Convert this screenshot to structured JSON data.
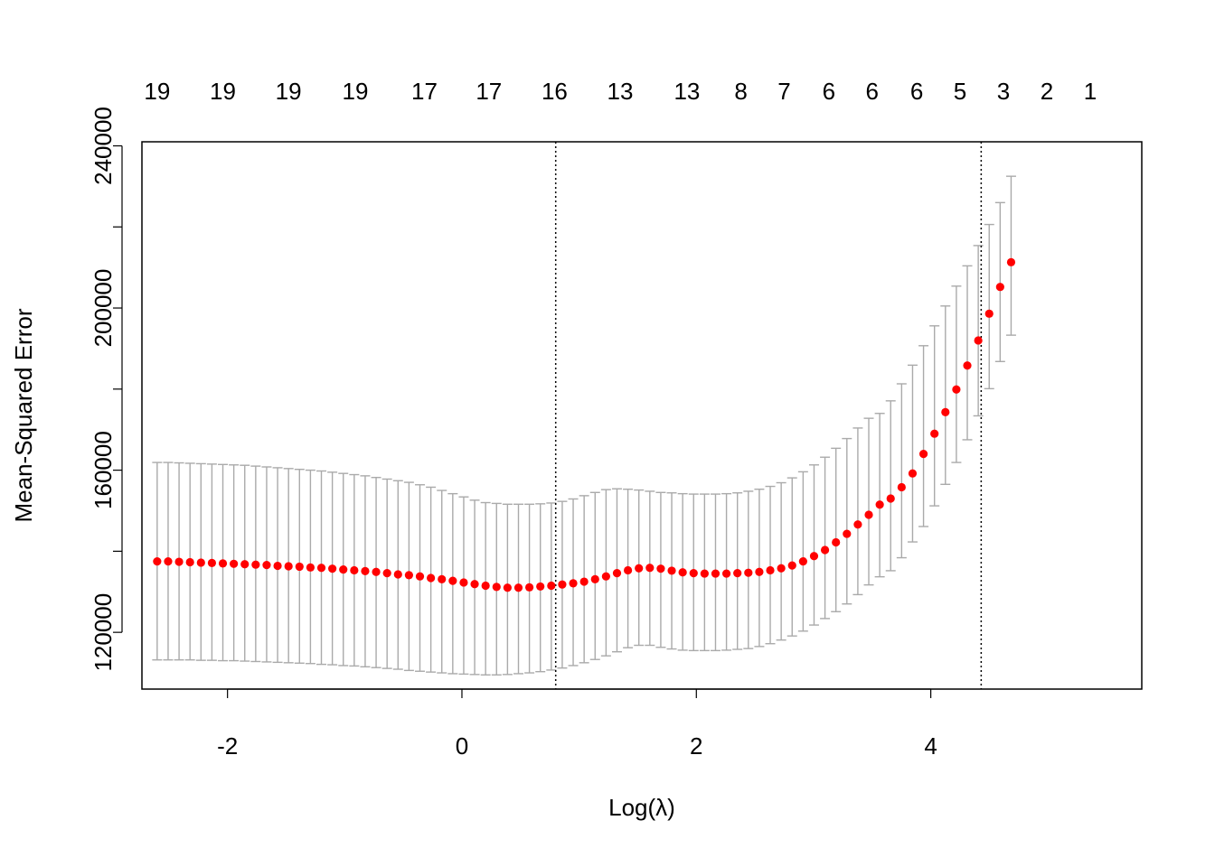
{
  "chart_data": {
    "type": "scatter",
    "title": "",
    "xlabel": "Log(λ)",
    "ylabel": "Mean-Squared Error",
    "xlim": [
      -2.73,
      5.8
    ],
    "ylim": [
      106000,
      241000
    ],
    "x_ticks": [
      -2,
      0,
      2,
      4
    ],
    "x_tick_labels": [
      "-2",
      "0",
      "2",
      "4"
    ],
    "y_ticks": [
      120000,
      140000,
      160000,
      180000,
      200000,
      220000,
      240000
    ],
    "y_tick_labels": [
      "120000",
      "",
      "160000",
      "",
      "200000",
      "",
      "240000"
    ],
    "top_axis": {
      "positions": [
        -2.6,
        -2.04,
        -1.48,
        -0.91,
        -0.32,
        0.23,
        0.79,
        1.35,
        1.92,
        2.38,
        2.75,
        3.13,
        3.5,
        3.88,
        4.25,
        4.62,
        4.99,
        5.36
      ],
      "labels": [
        "19",
        "19",
        "19",
        "19",
        "17",
        "17",
        "16",
        "13",
        "13",
        "8",
        "7",
        "6",
        "6",
        "6",
        "5",
        "3",
        "2",
        "1"
      ]
    },
    "vlines": [
      0.8,
      4.43
    ],
    "grid": false,
    "legend": "none",
    "point_color": "#ff0000",
    "errorbar_color": "#aaaaaa",
    "series": [
      {
        "x_start": -2.6,
        "x_step": 0.0934,
        "mean": [
          137500,
          137500,
          137400,
          137300,
          137200,
          137100,
          137000,
          136900,
          136800,
          136700,
          136600,
          136400,
          136300,
          136200,
          136000,
          135900,
          135700,
          135500,
          135300,
          135100,
          134900,
          134600,
          134300,
          134100,
          133800,
          133400,
          133100,
          132700,
          132300,
          131900,
          131500,
          131200,
          131000,
          131000,
          131100,
          131300,
          131500,
          131800,
          132100,
          132500,
          133100,
          133800,
          134600,
          135300,
          135800,
          135900,
          135700,
          135200,
          134800,
          134600,
          134500,
          134500,
          134500,
          134600,
          134700,
          134900,
          135300,
          135800,
          136500,
          137500,
          138800,
          140300,
          142200,
          144300,
          146600,
          149000,
          151500,
          153000,
          155800,
          159200,
          164000,
          169000,
          174300,
          179900,
          185800,
          192000,
          198600,
          205200,
          211300
        ],
        "lower": [
          113200,
          113200,
          113200,
          113200,
          113100,
          113100,
          113000,
          113000,
          112900,
          112800,
          112700,
          112600,
          112500,
          112400,
          112300,
          112100,
          112000,
          111800,
          111700,
          111500,
          111300,
          111100,
          110900,
          110600,
          110400,
          110200,
          110000,
          109800,
          109700,
          109600,
          109500,
          109500,
          109600,
          109800,
          110000,
          110300,
          110700,
          111200,
          111800,
          112500,
          113300,
          114200,
          115200,
          116200,
          116800,
          116800,
          116300,
          115900,
          115600,
          115500,
          115500,
          115500,
          115600,
          115800,
          116000,
          116500,
          117200,
          118100,
          119100,
          120300,
          121800,
          123400,
          125100,
          127000,
          129300,
          131700,
          133700,
          135200,
          138400,
          142300,
          146100,
          151200,
          156500,
          161900,
          167500,
          173400,
          180100,
          186800,
          193300
        ],
        "upper": [
          161900,
          161900,
          161800,
          161700,
          161600,
          161500,
          161400,
          161300,
          161200,
          161000,
          160800,
          160600,
          160400,
          160200,
          160000,
          159800,
          159500,
          159200,
          158900,
          158600,
          158200,
          157800,
          157400,
          157000,
          156400,
          155800,
          155000,
          154200,
          153400,
          152600,
          152000,
          151800,
          151600,
          151600,
          151600,
          151700,
          151900,
          152300,
          152900,
          153700,
          154500,
          155200,
          155400,
          155300,
          155100,
          154800,
          154500,
          154400,
          154200,
          154100,
          154100,
          154100,
          154200,
          154400,
          154800,
          155300,
          156000,
          156900,
          158100,
          159600,
          161300,
          163200,
          165400,
          167800,
          170400,
          172800,
          174000,
          177100,
          181300,
          185900,
          190700,
          195600,
          200500,
          205400,
          210400,
          215400,
          220600,
          226000,
          232500
        ]
      }
    ]
  }
}
